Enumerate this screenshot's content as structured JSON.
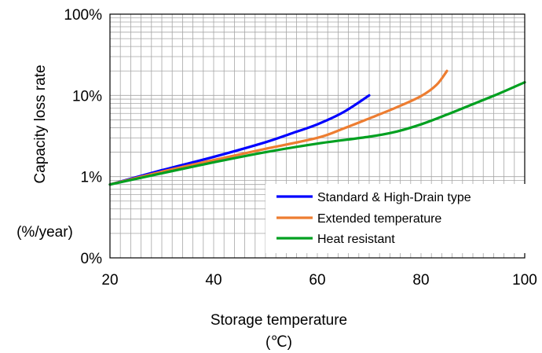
{
  "chart_data": {
    "type": "line",
    "title": "",
    "xlabel": "Storage temperature",
    "xlabel_unit": "(℃)",
    "ylabel": "Capacity loss rate",
    "ylabel_unit": "(%/year)",
    "xlim": [
      20,
      100
    ],
    "ylim": [
      0.1,
      100
    ],
    "yscale": "log",
    "x_ticks": [
      20,
      40,
      60,
      80,
      100
    ],
    "x_tick_labels": [
      "20",
      "40",
      "60",
      "80",
      "100"
    ],
    "y_ticks": [
      0.1,
      1,
      10,
      100
    ],
    "y_tick_labels": [
      "0%",
      "1%",
      "10%",
      "100%"
    ],
    "grid": true,
    "legend_position": "bottom-right",
    "series": [
      {
        "name": "Standard & High-Drain type",
        "color": "#0000ff",
        "x": [
          20,
          30,
          40,
          50,
          55,
          60,
          65,
          70
        ],
        "y": [
          0.8,
          1.2,
          1.75,
          2.65,
          3.4,
          4.4,
          6.2,
          10.0
        ]
      },
      {
        "name": "Extended temperature",
        "color": "#ed7d31",
        "x": [
          20,
          30,
          40,
          50,
          60,
          65,
          70,
          75,
          80,
          83,
          85
        ],
        "y": [
          0.8,
          1.15,
          1.6,
          2.2,
          3.0,
          3.9,
          5.2,
          7.0,
          9.8,
          13.5,
          20.0
        ]
      },
      {
        "name": "Heat resistant",
        "color": "#00a020",
        "x": [
          20,
          30,
          40,
          50,
          60,
          70,
          75,
          80,
          85,
          90,
          95,
          100
        ],
        "y": [
          0.8,
          1.1,
          1.5,
          2.0,
          2.55,
          3.1,
          3.55,
          4.4,
          5.8,
          7.8,
          10.5,
          14.5
        ]
      }
    ]
  }
}
